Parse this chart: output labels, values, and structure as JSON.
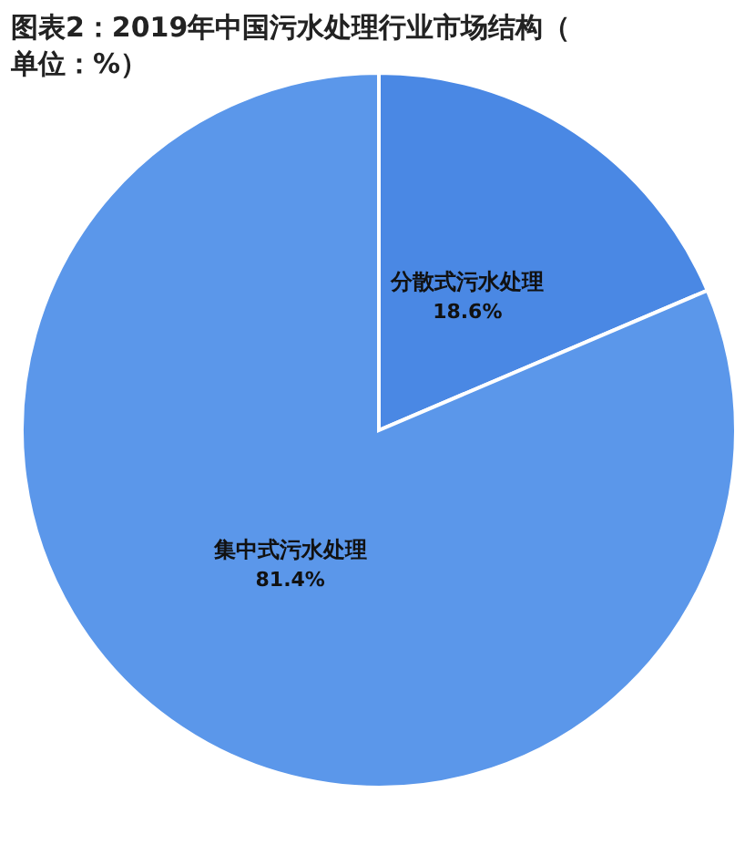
{
  "chart_data": {
    "type": "pie",
    "title": "图表2：2019年中国污水处理行业市场结构（单位：%）",
    "categories": [
      "分散式污水处理",
      "集中式污水处理"
    ],
    "values": [
      18.6,
      81.4
    ],
    "colors": [
      "#4a88e4",
      "#5b97ea"
    ],
    "value_labels": [
      "18.6%",
      "81.4%"
    ]
  }
}
